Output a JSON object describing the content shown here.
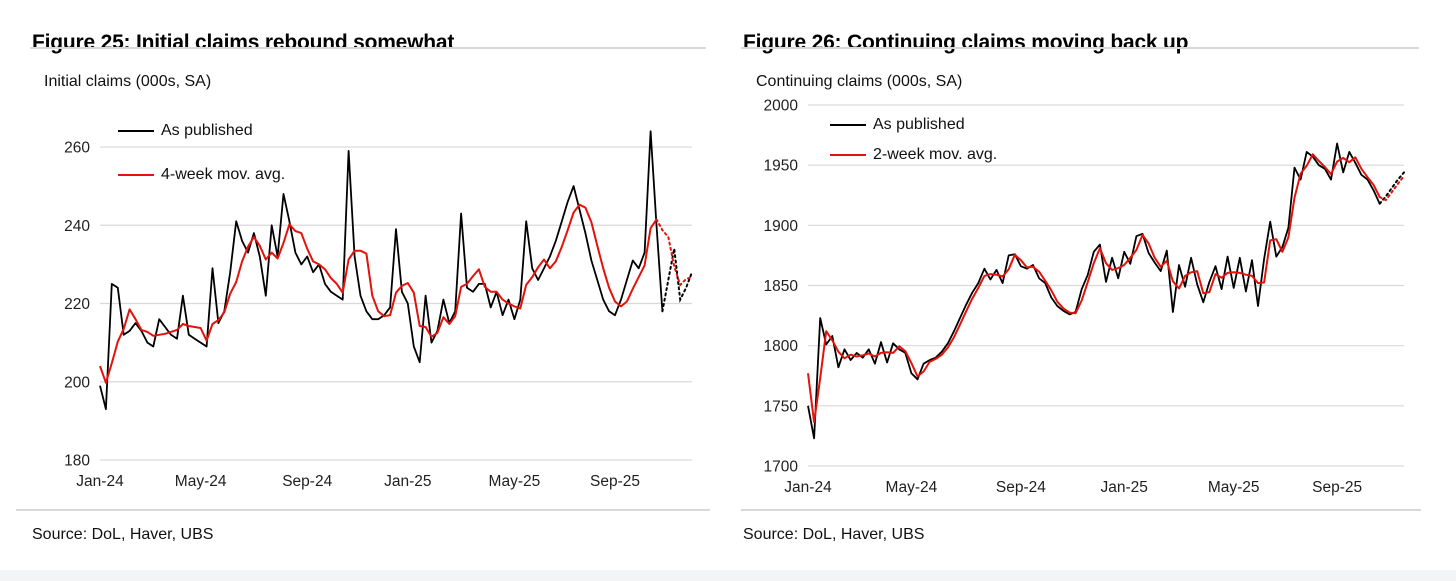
{
  "page": {
    "background_color": "#ffffff",
    "bottom_band_color": "#f3f4f6"
  },
  "figures": [
    {
      "title": "Figure 25: Initial claims rebound somewhat",
      "axis_title": "Initial claims (000s, SA)",
      "source": "Source: DoL, Haver, UBS",
      "legend": [
        {
          "label": "As published",
          "color": "#000000"
        },
        {
          "label": "4-week mov. avg.",
          "color": "#e3120b"
        }
      ],
      "chart_data": {
        "type": "line",
        "title": "Initial claims rebound somewhat",
        "ylabel": "Initial claims (000s, SA)",
        "ylim": [
          180,
          266
        ],
        "grid": true,
        "legend_position": "top-left-inside",
        "y_axis": {
          "min": 180,
          "max": 260,
          "ticks": [
            180,
            200,
            220,
            240,
            260
          ]
        },
        "x_ticks": {
          "labels": [
            "Jan-24",
            "May-24",
            "Sep-24",
            "Jan-25",
            "May-25",
            "Sep-25"
          ],
          "week_indices": [
            0,
            17,
            35,
            52,
            70,
            87
          ]
        },
        "series": [
          {
            "name": "As published",
            "color": "#000000",
            "style": "solid, dotted forecast tail",
            "values_solid": [
              199,
              193,
              225,
              224,
              212,
              213,
              215,
              213,
              210,
              209,
              216,
              214,
              212,
              211,
              222,
              212,
              211,
              210,
              209,
              229,
              215,
              218,
              228,
              241,
              236,
              233,
              238,
              232,
              222,
              240,
              232,
              248,
              241,
              233,
              230,
              232,
              228,
              230,
              225,
              223,
              222,
              221,
              259,
              232,
              222,
              218,
              216,
              216,
              217,
              219,
              239,
              223,
              220,
              209,
              205,
              222,
              210,
              213,
              221,
              215,
              218,
              243,
              224,
              223,
              225,
              225,
              219,
              223,
              217,
              221,
              216,
              221,
              241,
              229,
              226,
              229,
              232,
              236,
              241,
              246,
              250,
              244,
              238,
              231,
              226,
              221,
              218,
              217,
              221,
              226,
              231,
              229,
              233,
              264,
              240,
              218
            ],
            "values_forecast_dotted": [
              226,
              234,
              221,
              224,
              228
            ]
          },
          {
            "name": "4-week mov. avg.",
            "color": "#e3120b",
            "style": "solid, dotted forecast tail",
            "derived": "4-week moving average of the As published series",
            "window": 4,
            "ma_lead_in_values": [
              210,
              205,
              202
            ],
            "dotted_from_end": 7
          }
        ]
      }
    },
    {
      "title": "Figure 26: Continuing claims moving back up",
      "axis_title": "Continuing claims (000s, SA)",
      "source": "Source: DoL, Haver, UBS",
      "legend": [
        {
          "label": "As published",
          "color": "#000000"
        },
        {
          "label": "2-week mov. avg.",
          "color": "#e3120b"
        }
      ],
      "chart_data": {
        "type": "line",
        "title": "Continuing claims moving back up",
        "ylabel": "Continuing claims (000s, SA)",
        "ylim": [
          1700,
          2000
        ],
        "grid": true,
        "legend_position": "top-left-inside",
        "y_axis": {
          "min": 1700,
          "max": 2000,
          "ticks": [
            1700,
            1750,
            1800,
            1850,
            1900,
            1950,
            2000
          ]
        },
        "x_ticks": {
          "labels": [
            "Jan-24",
            "May-24",
            "Sep-24",
            "Jan-25",
            "May-25",
            "Sep-25"
          ],
          "week_indices": [
            0,
            17,
            35,
            52,
            70,
            87
          ]
        },
        "series": [
          {
            "name": "As published",
            "color": "#000000",
            "style": "solid, dotted forecast tail",
            "values_solid": [
              1750,
              1723,
              1823,
              1801,
              1808,
              1782,
              1797,
              1788,
              1794,
              1790,
              1797,
              1785,
              1803,
              1786,
              1802,
              1797,
              1794,
              1777,
              1772,
              1785,
              1788,
              1790,
              1795,
              1802,
              1812,
              1823,
              1834,
              1844,
              1852,
              1864,
              1855,
              1863,
              1852,
              1875,
              1876,
              1866,
              1864,
              1867,
              1856,
              1852,
              1840,
              1833,
              1829,
              1826,
              1828,
              1847,
              1859,
              1878,
              1884,
              1853,
              1873,
              1856,
              1878,
              1868,
              1891,
              1893,
              1877,
              1869,
              1862,
              1879,
              1828,
              1867,
              1849,
              1873,
              1851,
              1836,
              1853,
              1866,
              1847,
              1874,
              1848,
              1873,
              1845,
              1871,
              1833,
              1872,
              1903,
              1874,
              1882,
              1898,
              1948,
              1938,
              1961,
              1957,
              1950,
              1947,
              1938,
              1968,
              1944,
              1961,
              1952,
              1942,
              1938,
              1929,
              1918
            ],
            "values_forecast_dotted": [
              1924,
              1931,
              1938,
              1944
            ]
          },
          {
            "name": "2-week mov. avg.",
            "color": "#e3120b",
            "style": "solid, dotted forecast tail",
            "derived": "2-week moving average of the As published series",
            "window": 2,
            "ma_lead_in_values": [
              1804
            ],
            "dotted_from_end": 5
          }
        ]
      }
    }
  ]
}
